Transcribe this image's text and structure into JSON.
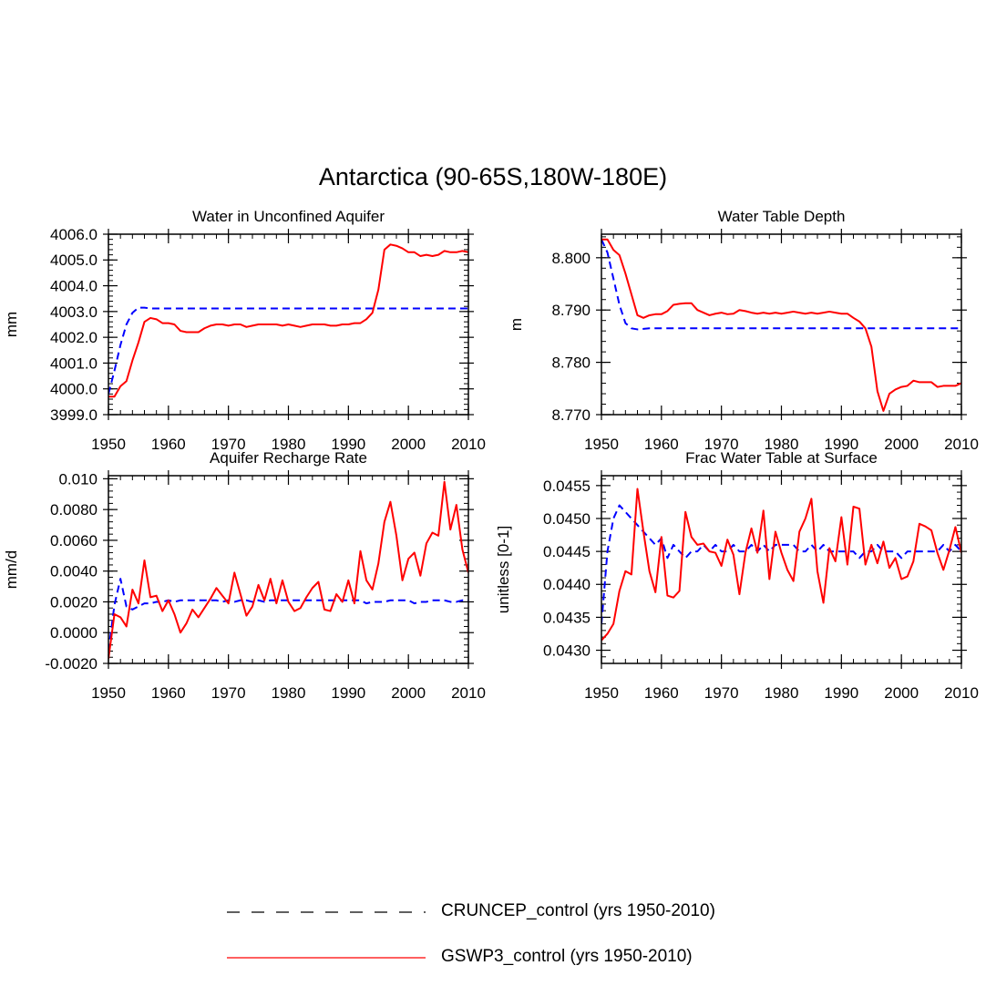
{
  "figure": {
    "title": "Antarctica (90-65S,180W-180E)"
  },
  "legend": [
    {
      "label": "CRUNCEP_control (yrs 1950-2010)",
      "color": "#0000ff",
      "style": "dashed"
    },
    {
      "label": "GSWP3_control (yrs 1950-2010)",
      "color": "#ff0000",
      "style": "solid"
    }
  ],
  "chart_data": [
    {
      "type": "line",
      "title": "Water in Unconfined Aquifer",
      "xlabel": "",
      "ylabel": "mm",
      "xlim": [
        1950,
        2010
      ],
      "ylim": [
        3999.0,
        4006.0
      ],
      "xticks": [
        1950,
        1960,
        1970,
        1980,
        1990,
        2000,
        2010
      ],
      "xtick_labels": [
        "1950",
        "1960",
        "1970",
        "1980",
        "1990",
        "2000",
        "2010"
      ],
      "yticks": [
        3999.0,
        4000.0,
        4001.0,
        4002.0,
        4003.0,
        4004.0,
        4005.0,
        4006.0
      ],
      "ytick_labels": [
        "3999.0",
        "4000.0",
        "4001.0",
        "4002.0",
        "4003.0",
        "4004.0",
        "4005.0",
        "4006.0"
      ],
      "x_start": 1950,
      "series": [
        {
          "name": "CRUNCEP_control (yrs 1950-2010)",
          "color": "#0000ff",
          "style": "dashed",
          "values": [
            3999.8,
            4000.7,
            4001.7,
            4002.5,
            4002.95,
            4003.15,
            4003.15,
            4003.12,
            4003.12,
            4003.12,
            4003.12,
            4003.12,
            4003.12,
            4003.12,
            4003.12,
            4003.12,
            4003.12,
            4003.12,
            4003.12,
            4003.12,
            4003.12,
            4003.12,
            4003.12,
            4003.12,
            4003.12,
            4003.12,
            4003.12,
            4003.12,
            4003.12,
            4003.12,
            4003.12,
            4003.12,
            4003.12,
            4003.12,
            4003.12,
            4003.12,
            4003.12,
            4003.12,
            4003.12,
            4003.12,
            4003.12,
            4003.12,
            4003.12,
            4003.12,
            4003.12,
            4003.12,
            4003.12,
            4003.12,
            4003.12,
            4003.12,
            4003.12,
            4003.12,
            4003.12,
            4003.12,
            4003.12,
            4003.12,
            4003.12,
            4003.12,
            4003.12,
            4003.12,
            4003.12
          ]
        },
        {
          "name": "GSWP3_control (yrs 1950-2010)",
          "color": "#ff0000",
          "style": "solid",
          "values": [
            3999.7,
            3999.7,
            4000.1,
            4000.3,
            4001.1,
            4001.8,
            4002.6,
            4002.75,
            4002.7,
            4002.55,
            4002.55,
            4002.5,
            4002.25,
            4002.2,
            4002.2,
            4002.2,
            4002.35,
            4002.45,
            4002.5,
            4002.5,
            4002.45,
            4002.5,
            4002.5,
            4002.4,
            4002.45,
            4002.5,
            4002.5,
            4002.5,
            4002.5,
            4002.45,
            4002.5,
            4002.45,
            4002.4,
            4002.45,
            4002.5,
            4002.5,
            4002.5,
            4002.45,
            4002.45,
            4002.5,
            4002.5,
            4002.55,
            4002.55,
            4002.7,
            4002.95,
            4003.85,
            4005.4,
            4005.6,
            4005.55,
            4005.45,
            4005.3,
            4005.3,
            4005.15,
            4005.2,
            4005.15,
            4005.2,
            4005.35,
            4005.3,
            4005.3,
            4005.35,
            4005.3
          ]
        }
      ]
    },
    {
      "type": "line",
      "title": "Water Table Depth",
      "xlabel": "",
      "ylabel": "m",
      "xlim": [
        1950,
        2010
      ],
      "ylim": [
        8.77,
        8.8045
      ],
      "xticks": [
        1950,
        1960,
        1970,
        1980,
        1990,
        2000,
        2010
      ],
      "xtick_labels": [
        "1950",
        "1960",
        "1970",
        "1980",
        "1990",
        "2000",
        "2010"
      ],
      "yticks": [
        8.77,
        8.78,
        8.79,
        8.8
      ],
      "ytick_labels": [
        "8.770",
        "8.780",
        "8.790",
        "8.800"
      ],
      "x_start": 1950,
      "series": [
        {
          "name": "CRUNCEP_control (yrs 1950-2010)",
          "color": "#0000ff",
          "style": "dashed",
          "values": [
            8.8035,
            8.801,
            8.796,
            8.791,
            8.7875,
            8.7865,
            8.7863,
            8.7864,
            8.7865,
            8.7865,
            8.7865,
            8.7865,
            8.7865,
            8.7865,
            8.7865,
            8.7865,
            8.7865,
            8.7865,
            8.7865,
            8.7865,
            8.7865,
            8.7865,
            8.7865,
            8.7865,
            8.7865,
            8.7865,
            8.7865,
            8.7865,
            8.7865,
            8.7865,
            8.7865,
            8.7865,
            8.7865,
            8.7865,
            8.7865,
            8.7865,
            8.7865,
            8.7865,
            8.7865,
            8.7865,
            8.7865,
            8.7865,
            8.7865,
            8.7865,
            8.7865,
            8.7865,
            8.7865,
            8.7865,
            8.7865,
            8.7865,
            8.7865,
            8.7865,
            8.7865,
            8.7865,
            8.7865,
            8.7865,
            8.7865,
            8.7865,
            8.7865,
            8.7865,
            8.7865
          ]
        },
        {
          "name": "GSWP3_control (yrs 1950-2010)",
          "color": "#ff0000",
          "style": "solid",
          "values": [
            8.8035,
            8.8035,
            8.8015,
            8.8005,
            8.797,
            8.793,
            8.789,
            8.7885,
            8.789,
            8.7892,
            8.7892,
            8.7898,
            8.791,
            8.7912,
            8.7913,
            8.7913,
            8.79,
            8.7895,
            8.789,
            8.7893,
            8.7895,
            8.7892,
            8.7893,
            8.79,
            8.7898,
            8.7895,
            8.7893,
            8.7895,
            8.7893,
            8.7895,
            8.7893,
            8.7895,
            8.7897,
            8.7895,
            8.7893,
            8.7895,
            8.7893,
            8.7895,
            8.7897,
            8.7895,
            8.7893,
            8.7893,
            8.7885,
            8.7878,
            8.7865,
            8.783,
            8.7745,
            8.7707,
            8.774,
            8.7748,
            8.7753,
            8.7755,
            8.7765,
            8.7762,
            8.7762,
            8.7762,
            8.7753,
            8.7755,
            8.7755,
            8.7755,
            8.776
          ]
        }
      ]
    },
    {
      "type": "line",
      "title": "Aquifer Recharge Rate",
      "xlabel": "",
      "ylabel": "mm/d",
      "xlim": [
        1950,
        2010
      ],
      "ylim": [
        -0.002,
        0.0102
      ],
      "xticks": [
        1950,
        1960,
        1970,
        1980,
        1990,
        2000,
        2010
      ],
      "xtick_labels": [
        "1950",
        "1960",
        "1970",
        "1980",
        "1990",
        "2000",
        "2010"
      ],
      "yticks": [
        -0.002,
        0.0,
        0.002,
        0.004,
        0.006,
        0.008,
        0.01
      ],
      "ytick_labels": [
        "-0.0020",
        "0.0000",
        "0.0020",
        "0.0040",
        "0.0060",
        "0.0080",
        "0.010"
      ],
      "x_start": 1950,
      "series": [
        {
          "name": "CRUNCEP_control (yrs 1950-2010)",
          "color": "#0000ff",
          "style": "dashed",
          "values": [
            -0.0012,
            0.0018,
            0.0035,
            0.0017,
            0.0015,
            0.0017,
            0.0019,
            0.0019,
            0.002,
            0.002,
            0.0021,
            0.002,
            0.0021,
            0.0021,
            0.0021,
            0.0021,
            0.0021,
            0.0021,
            0.0021,
            0.002,
            0.0021,
            0.002,
            0.0021,
            0.0021,
            0.002,
            0.0021,
            0.002,
            0.0021,
            0.0021,
            0.0021,
            0.0021,
            0.0021,
            0.0021,
            0.0021,
            0.0021,
            0.0021,
            0.0021,
            0.0021,
            0.0021,
            0.0021,
            0.0021,
            0.0021,
            0.0021,
            0.0019,
            0.002,
            0.002,
            0.002,
            0.0021,
            0.0021,
            0.0021,
            0.0021,
            0.0019,
            0.002,
            0.002,
            0.0021,
            0.0021,
            0.0021,
            0.002,
            0.002,
            0.0021,
            0.0021
          ]
        },
        {
          "name": "GSWP3_control (yrs 1950-2010)",
          "color": "#ff0000",
          "style": "solid",
          "values": [
            -0.0017,
            0.0012,
            0.001,
            0.0004,
            0.0028,
            0.0019,
            0.0047,
            0.0023,
            0.0024,
            0.0014,
            0.0021,
            0.0012,
            0.0,
            0.0006,
            0.0015,
            0.001,
            0.0016,
            0.0022,
            0.0029,
            0.0024,
            0.0019,
            0.0039,
            0.0025,
            0.0011,
            0.0017,
            0.0031,
            0.0021,
            0.0035,
            0.0019,
            0.0034,
            0.002,
            0.0014,
            0.0016,
            0.0023,
            0.0029,
            0.0033,
            0.0015,
            0.0014,
            0.0025,
            0.002,
            0.0034,
            0.0019,
            0.0053,
            0.0034,
            0.0028,
            0.0045,
            0.0072,
            0.0085,
            0.0063,
            0.0034,
            0.0048,
            0.0052,
            0.0037,
            0.0058,
            0.0065,
            0.0063,
            0.0098,
            0.0067,
            0.0083,
            0.0054,
            0.0039
          ]
        }
      ]
    },
    {
      "type": "line",
      "title": "Frac Water Table at Surface",
      "xlabel": "",
      "ylabel": "unitless [0-1]",
      "xlim": [
        1950,
        2010
      ],
      "ylim": [
        0.0428,
        0.04565
      ],
      "xticks": [
        1950,
        1960,
        1970,
        1980,
        1990,
        2000,
        2010
      ],
      "xtick_labels": [
        "1950",
        "1960",
        "1970",
        "1980",
        "1990",
        "2000",
        "2010"
      ],
      "yticks": [
        0.043,
        0.0435,
        0.044,
        0.0445,
        0.045,
        0.0455
      ],
      "ytick_labels": [
        "0.0430",
        "0.0435",
        "0.0440",
        "0.0445",
        "0.0450",
        "0.0455"
      ],
      "x_start": 1950,
      "series": [
        {
          "name": "CRUNCEP_control (yrs 1950-2010)",
          "color": "#0000ff",
          "style": "dashed",
          "values": [
            0.0434,
            0.0445,
            0.045,
            0.0452,
            0.0451,
            0.045,
            0.0449,
            0.0448,
            0.0447,
            0.0446,
            0.0447,
            0.0444,
            0.0446,
            0.0445,
            0.0444,
            0.0445,
            0.0445,
            0.0446,
            0.0445,
            0.0446,
            0.0445,
            0.0445,
            0.0446,
            0.0445,
            0.0445,
            0.0446,
            0.0445,
            0.0446,
            0.0445,
            0.0446,
            0.0446,
            0.0446,
            0.0446,
            0.0445,
            0.0445,
            0.0446,
            0.0445,
            0.0446,
            0.0445,
            0.0445,
            0.0445,
            0.0445,
            0.0445,
            0.0444,
            0.0445,
            0.0445,
            0.0446,
            0.0445,
            0.0445,
            0.0445,
            0.0444,
            0.0445,
            0.0445,
            0.0445,
            0.0445,
            0.0445,
            0.0445,
            0.0446,
            0.0445,
            0.0446,
            0.0445
          ]
        },
        {
          "name": "GSWP3_control (yrs 1950-2010)",
          "color": "#ff0000",
          "style": "solid",
          "values": [
            0.04315,
            0.04325,
            0.0434,
            0.0439,
            0.0442,
            0.04415,
            0.04545,
            0.0448,
            0.0442,
            0.04388,
            0.04472,
            0.04383,
            0.0438,
            0.0439,
            0.0451,
            0.04472,
            0.0446,
            0.04462,
            0.0445,
            0.04448,
            0.04428,
            0.04468,
            0.04445,
            0.04385,
            0.04448,
            0.04485,
            0.04448,
            0.04512,
            0.04408,
            0.0448,
            0.04448,
            0.04422,
            0.04405,
            0.0448,
            0.045,
            0.0453,
            0.0442,
            0.04372,
            0.04455,
            0.04435,
            0.04502,
            0.0443,
            0.04518,
            0.04515,
            0.0443,
            0.0446,
            0.04432,
            0.04465,
            0.04425,
            0.0444,
            0.04408,
            0.04412,
            0.04435,
            0.04492,
            0.04488,
            0.04482,
            0.04448,
            0.04422,
            0.04452,
            0.04487,
            0.04448
          ]
        }
      ]
    }
  ]
}
